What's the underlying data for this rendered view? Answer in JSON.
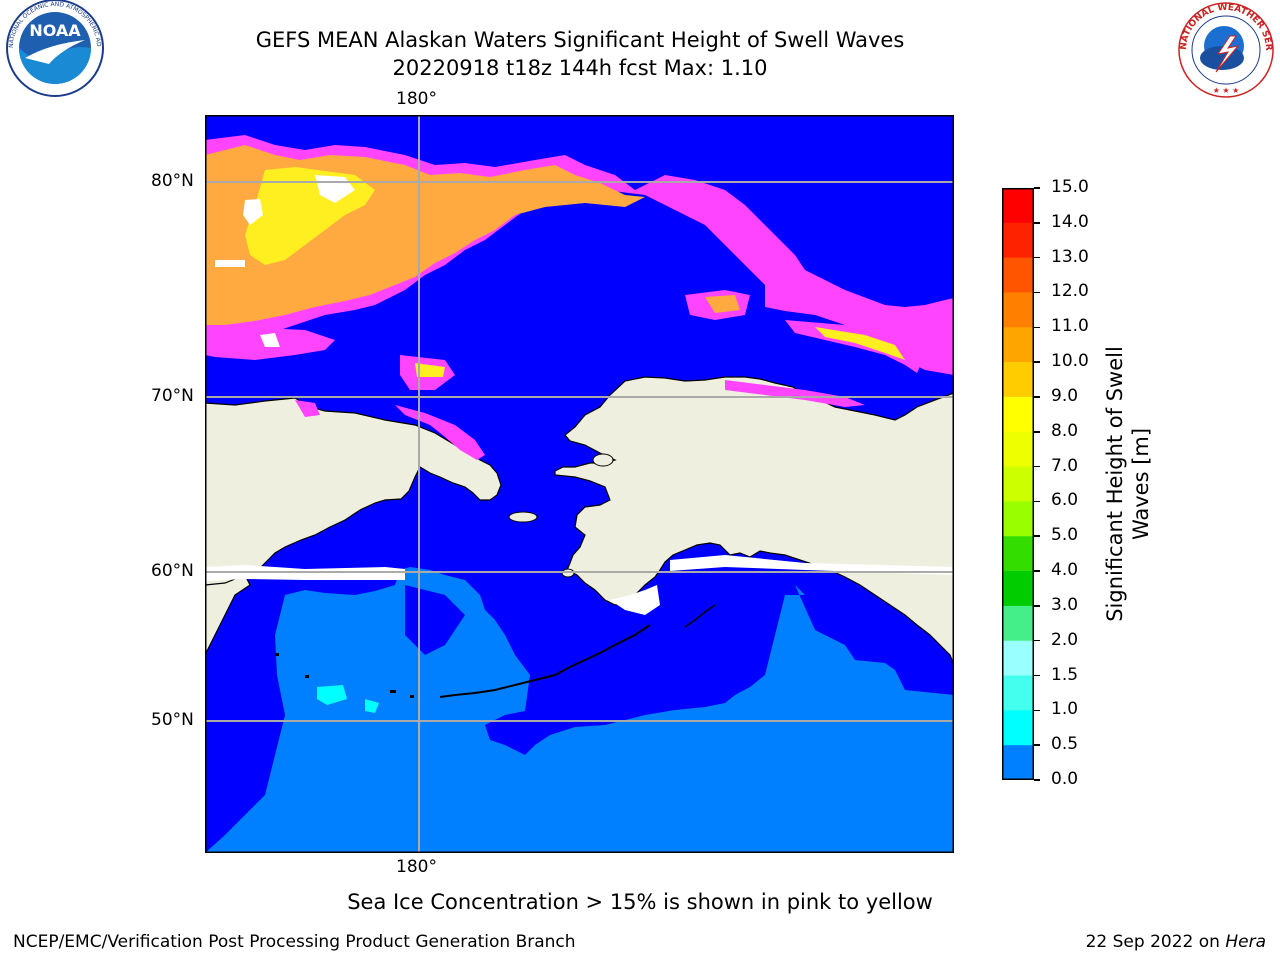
{
  "header": {
    "title_line1": "GEFS MEAN Alaskan Waters Significant Height of Swell Waves",
    "title_line2": "20220918 t18z 144h fcst   Max: 1.10"
  },
  "logos": {
    "left": {
      "name": "noaa-logo",
      "text": "NOAA",
      "ring_text": "NATIONAL OCEANIC AND ATMOSPHERIC ADMINISTRATION · U.S. DEPARTMENT OF COMMERCE"
    },
    "right": {
      "name": "nws-logo",
      "ring_text": "NATIONAL WEATHER SERVICE"
    }
  },
  "map": {
    "lon_label_top": "180°",
    "lon_label_bottom": "180°",
    "lat_labels": [
      "80°N",
      "70°N",
      "60°N",
      "50°N"
    ],
    "colors": {
      "ocean_low": "#0000ff",
      "ocean_mid": "#0080ff",
      "ocean_high": "#00ffff",
      "land": "#efefdf",
      "ice_pink": "#ff44ff",
      "ice_orange": "#ffaa40",
      "ice_yellow": "#ffee20"
    }
  },
  "colorbar": {
    "label": "Significant Height of Swell Waves [m]",
    "label_line1": "Significant Height of Swell",
    "label_line2": "Waves [m]",
    "ticks": [
      "15.0",
      "14.0",
      "13.0",
      "12.0",
      "11.0",
      "10.0",
      "9.0",
      "8.0",
      "7.0",
      "6.0",
      "5.0",
      "4.0",
      "3.0",
      "2.0",
      "1.5",
      "1.0",
      "0.5",
      "0.0"
    ],
    "colors": [
      "#ff0000",
      "#ff2200",
      "#ff5500",
      "#ff8000",
      "#ffa500",
      "#ffcc00",
      "#ffff00",
      "#eeff00",
      "#ccff00",
      "#99ff00",
      "#33dd00",
      "#00cc00",
      "#44ee88",
      "#99ffff",
      "#44ffee",
      "#00ffff",
      "#0080ff",
      "#0000ff"
    ]
  },
  "caption": "Sea Ice Concentration > 15% is shown in pink to yellow",
  "footer": {
    "left": "NCEP/EMC/Verification Post Processing Product Generation Branch",
    "right_date": "22 Sep 2022 on ",
    "right_host": "Hera"
  }
}
